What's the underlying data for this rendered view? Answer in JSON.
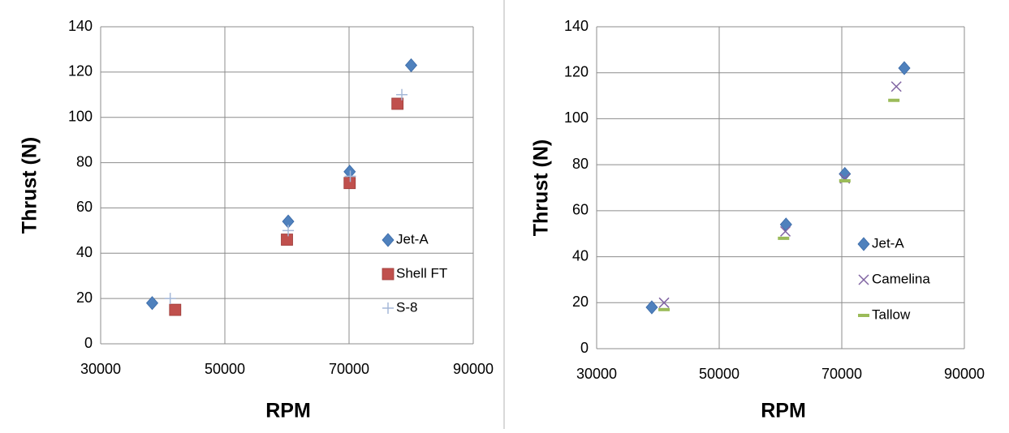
{
  "chart_data": [
    {
      "type": "scatter",
      "x_label": "RPM",
      "y_label": "Thrust (N)",
      "xlim": [
        30000,
        90000
      ],
      "xticks": [
        30000,
        50000,
        70000,
        90000
      ],
      "ylim": [
        0,
        140
      ],
      "yticks": [
        0,
        20,
        40,
        60,
        80,
        100,
        120,
        140
      ],
      "grid": true,
      "series": [
        {
          "name": "Jet-A",
          "color": "#4f81bd",
          "marker": "diamond",
          "x": [
            38300,
            60200,
            70100,
            80000
          ],
          "values": [
            18,
            54,
            76,
            123
          ]
        },
        {
          "name": "Shell FT",
          "color": "#c0504d",
          "marker": "square",
          "x": [
            42000,
            60000,
            70100,
            77800
          ],
          "values": [
            15,
            46,
            71,
            106
          ]
        },
        {
          "name": "S-8",
          "color": "#a5b8d8",
          "marker": "plus",
          "x": [
            41200,
            60200,
            70200,
            78500
          ],
          "values": [
            20,
            50,
            74,
            110
          ]
        }
      ]
    },
    {
      "type": "scatter",
      "x_label": "RPM",
      "y_label": "Thrust (N)",
      "xlim": [
        30000,
        90000
      ],
      "xticks": [
        30000,
        50000,
        70000,
        90000
      ],
      "ylim": [
        0,
        140
      ],
      "yticks": [
        0,
        20,
        40,
        60,
        80,
        100,
        120,
        140
      ],
      "grid": true,
      "series": [
        {
          "name": "Jet-A",
          "color": "#4f81bd",
          "marker": "diamond",
          "x": [
            39000,
            60900,
            70500,
            80200
          ],
          "values": [
            18,
            54,
            76,
            122
          ]
        },
        {
          "name": "Camelina",
          "color": "#8064a2",
          "marker": "x",
          "x": [
            41000,
            60800,
            70500,
            78900
          ],
          "values": [
            20,
            51,
            74,
            114
          ]
        },
        {
          "name": "Tallow",
          "color": "#9bbb59",
          "marker": "dash",
          "x": [
            41000,
            60500,
            70500,
            78500
          ],
          "values": [
            17,
            48,
            73,
            108
          ]
        }
      ]
    }
  ]
}
